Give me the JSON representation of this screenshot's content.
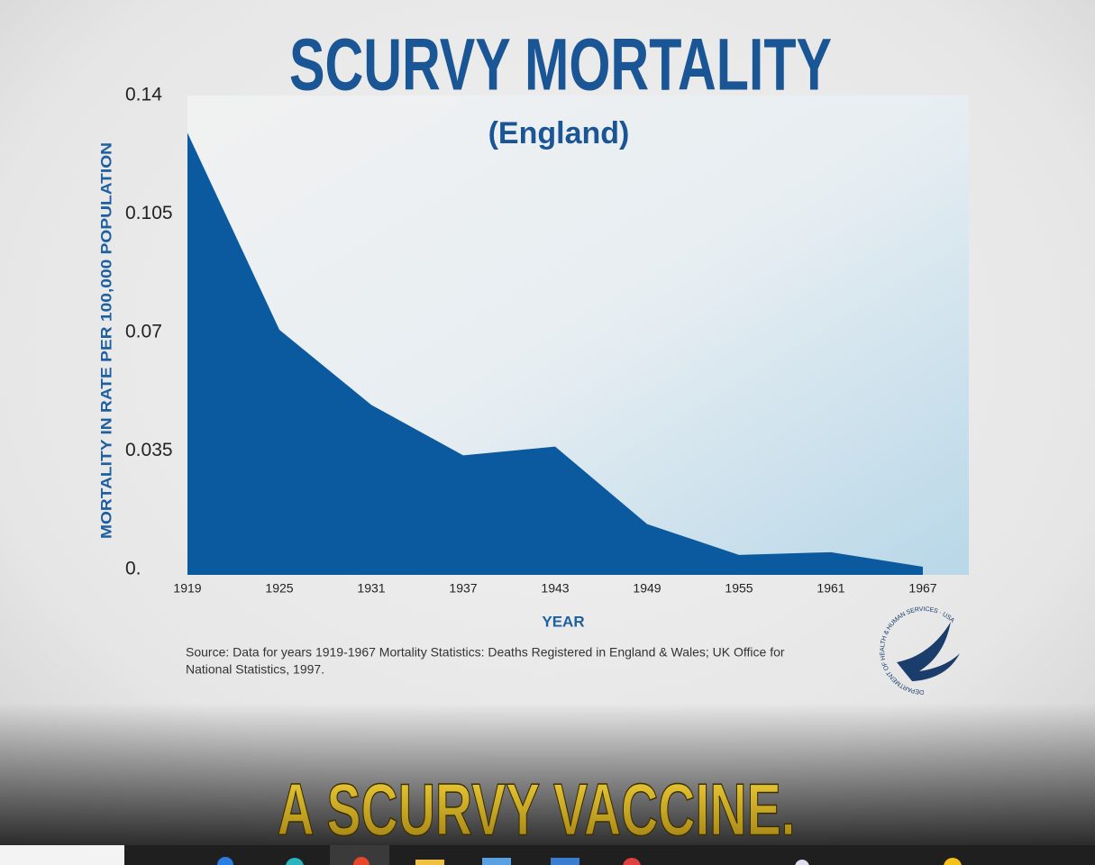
{
  "chart_data": {
    "type": "area",
    "title": "SCURVY MORTALITY",
    "subtitle": "(England)",
    "x_label": "YEAR",
    "y_label": "MORTALITY IN RATE PER 100,000 POPULATION",
    "x": [
      1919,
      1925,
      1931,
      1937,
      1943,
      1949,
      1955,
      1961,
      1967
    ],
    "values": [
      0.129,
      0.0708,
      0.0486,
      0.0337,
      0.0363,
      0.0134,
      0.0043,
      0.0051,
      0.0008
    ],
    "color": "#0b5aa0",
    "xlim": [
      1919,
      1970
    ],
    "xticks": [
      1919,
      1925,
      1931,
      1937,
      1943,
      1949,
      1955,
      1961,
      1967
    ],
    "ylim": [
      0,
      0.14
    ],
    "yticks": [
      {
        "value": 0,
        "label": "0."
      },
      0.035,
      0.07,
      0.105,
      0.14
    ],
    "source": [
      "Source: Data for years 1919-1967 Mortality Statistics: Deaths Registered in England & Wales; UK Office for",
      "National Statistics, 1997."
    ]
  },
  "logo": {
    "text": "DEPARTMENT OF HEALTH & HUMAN SERVICES · USA"
  },
  "caption": "A SCURVY VACCINE."
}
